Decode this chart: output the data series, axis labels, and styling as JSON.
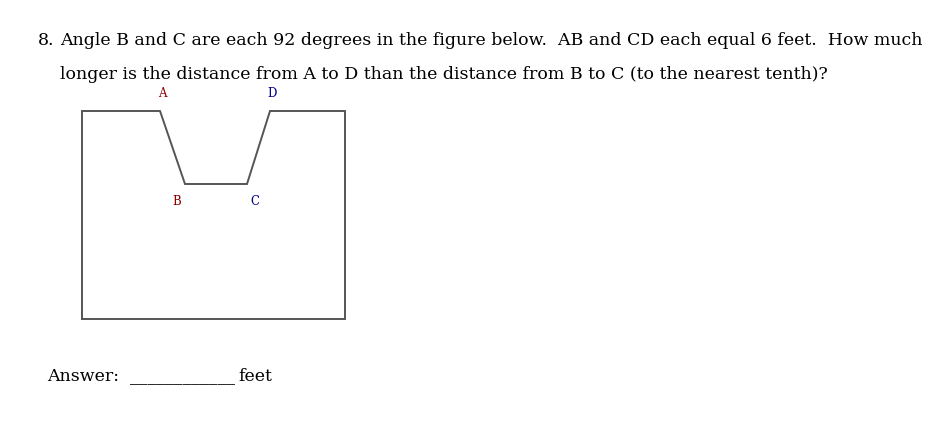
{
  "question_number": "8.",
  "question_text_line1": "Angle B and C are each 92 degrees in the figure below.  AB and CD each equal 6 feet.  How much",
  "question_text_line2": "longer is the distance from A to D than the distance from B to C (to the nearest tenth)?",
  "answer_label": "Answer:",
  "answer_blank": "____________",
  "answer_unit": "feet",
  "figure": {
    "shape_color": "#555555",
    "label_color_B": "#8B0000",
    "label_color_C": "#00008B",
    "label_color_A": "#8B0000",
    "label_color_D": "#00008B",
    "A_label": "A",
    "B_label": "B",
    "C_label": "C",
    "D_label": "D"
  },
  "text_color": "#000000",
  "bg_color": "#ffffff",
  "font_size_question": 12.5,
  "font_size_answer": 12.5,
  "font_size_labels": 8.5
}
